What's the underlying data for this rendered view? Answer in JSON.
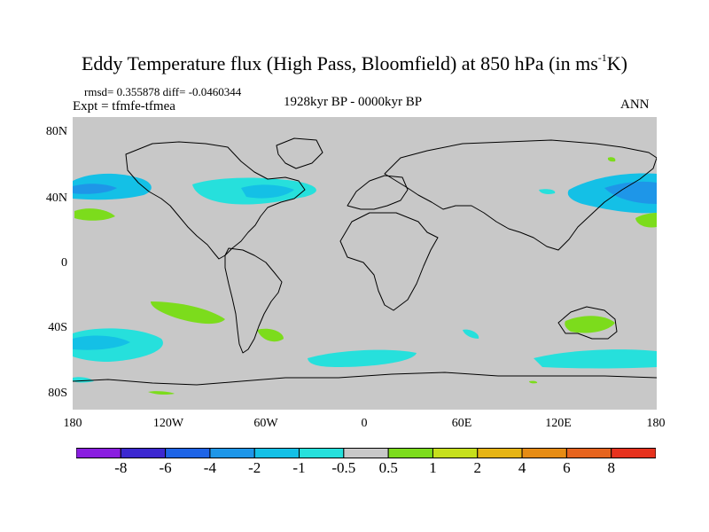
{
  "title": {
    "main": "Eddy Temperature flux (High Pass, Bloomfield) at 850 hPa (in ms",
    "sup": "-1",
    "end": "K)"
  },
  "stats": "rmsd= 0.355878 diff= -0.0460344",
  "expt": "Expt = tfmfe-tfmea",
  "period": "1928kyr BP - 0000kyr BP",
  "season": "ANN",
  "lat_labels": [
    "80N",
    "40N",
    "0",
    "40S",
    "80S"
  ],
  "lon_labels": [
    "180",
    "120W",
    "60W",
    "0",
    "60E",
    "120E",
    "180"
  ],
  "colorbar": {
    "labels": [
      "-8",
      "-6",
      "-4",
      "-2",
      "-1",
      "-0.5",
      "0.5",
      "1",
      "2",
      "4",
      "6",
      "8"
    ],
    "colors": [
      "#8a1ee0",
      "#3c28d0",
      "#1e64e6",
      "#1e96e8",
      "#14c0e6",
      "#26e0dc",
      "#c8c8c8",
      "#7cdc1c",
      "#c6e01c",
      "#e6b414",
      "#e68c14",
      "#e6641e",
      "#e6321e"
    ]
  },
  "map_colors": {
    "background": "#c8c8c8",
    "coast": "#000000",
    "cyan_light": "#26e0dc",
    "cyan": "#14c0e6",
    "green": "#7cdc1c"
  }
}
